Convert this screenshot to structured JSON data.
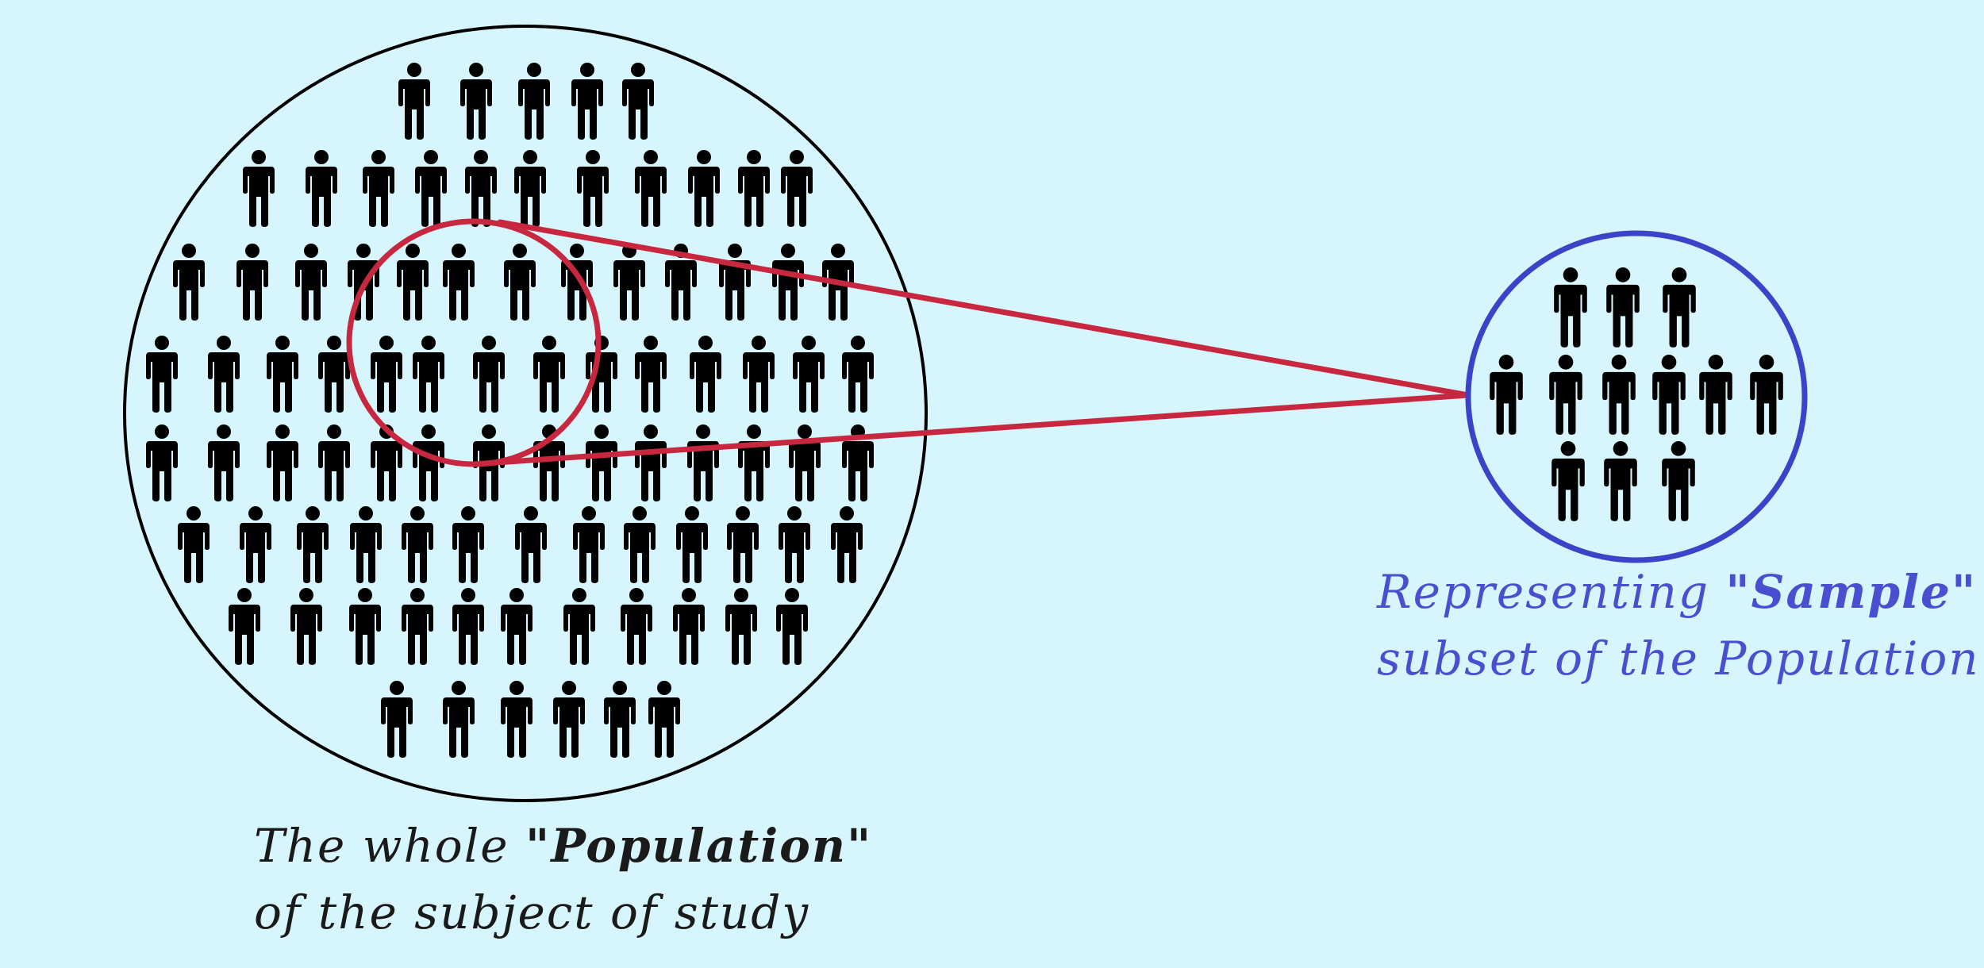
{
  "population": {
    "caption_line1_pre": "The whole ",
    "caption_line1_bold": "\"Population\"",
    "caption_line2": "of the subject of study",
    "circle_color": "#000000",
    "person_count": 86
  },
  "sample": {
    "caption_line1_pre": "Representing ",
    "caption_line1_bold": "\"Sample\"",
    "caption_line2": "subset of the Population",
    "circle_color": "#3b44c9",
    "caption_color": "#4a4fd0",
    "person_count": 12
  },
  "selection": {
    "circle_color": "#c8283f"
  },
  "colors": {
    "background": "#d7f5fc",
    "person": "#000000"
  },
  "icons": {
    "person": "person-icon"
  }
}
